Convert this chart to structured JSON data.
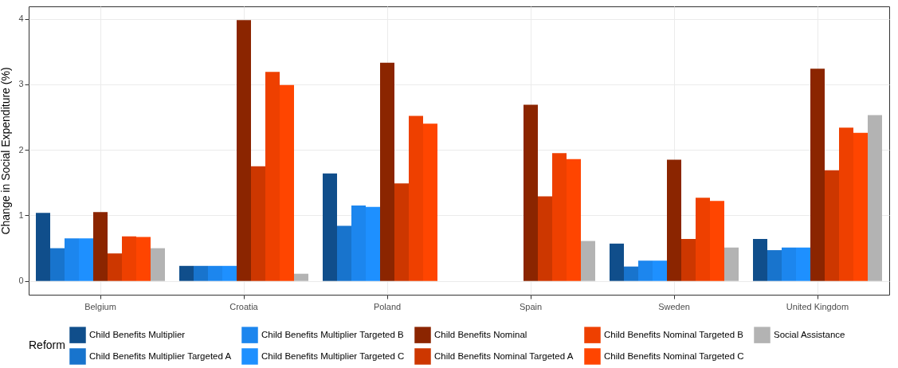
{
  "chart_data": {
    "type": "bar",
    "ylabel": "Change in Social Expenditure (%)",
    "legend_title": "Reform",
    "categories": [
      "Belgium",
      "Croatia",
      "Poland",
      "Spain",
      "Sweden",
      "United Kingdom"
    ],
    "series": [
      {
        "name": "Child Benefits Multiplier",
        "color": "#104e8b",
        "values": [
          1.04,
          0.23,
          1.64,
          0,
          0.57,
          0.64
        ]
      },
      {
        "name": "Child Benefits Multiplier Targeted A",
        "color": "#1874cd",
        "values": [
          0.5,
          0.23,
          0.84,
          0,
          0.22,
          0.47
        ]
      },
      {
        "name": "Child Benefits Multiplier Targeted B",
        "color": "#1c86ee",
        "values": [
          0.65,
          0.23,
          1.15,
          0,
          0.31,
          0.51
        ]
      },
      {
        "name": "Child Benefits Multiplier Targeted C",
        "color": "#1e90ff",
        "values": [
          0.65,
          0.23,
          1.13,
          0,
          0.31,
          0.51
        ]
      },
      {
        "name": "Child Benefits Nominal",
        "color": "#8b2500",
        "values": [
          1.05,
          3.98,
          3.33,
          2.69,
          1.85,
          3.24
        ]
      },
      {
        "name": "Child Benefits Nominal Targeted A",
        "color": "#cd3700",
        "values": [
          0.42,
          1.75,
          1.49,
          1.29,
          0.64,
          1.69
        ]
      },
      {
        "name": "Child Benefits Nominal Targeted B",
        "color": "#ee4000",
        "values": [
          0.68,
          3.19,
          2.52,
          1.95,
          1.27,
          2.34
        ]
      },
      {
        "name": "Child Benefits Nominal Targeted C",
        "color": "#ff4500",
        "values": [
          0.67,
          2.99,
          2.4,
          1.86,
          1.22,
          2.26
        ]
      },
      {
        "name": "Social Assistance",
        "color": "#b3b3b3",
        "values": [
          0.5,
          0.11,
          0,
          0.61,
          0.51,
          2.53
        ]
      }
    ],
    "ylim": [
      -0.21,
      4.19
    ],
    "yticks": [
      0,
      1,
      2,
      3,
      4
    ],
    "grid": true,
    "legend": "bottom"
  }
}
